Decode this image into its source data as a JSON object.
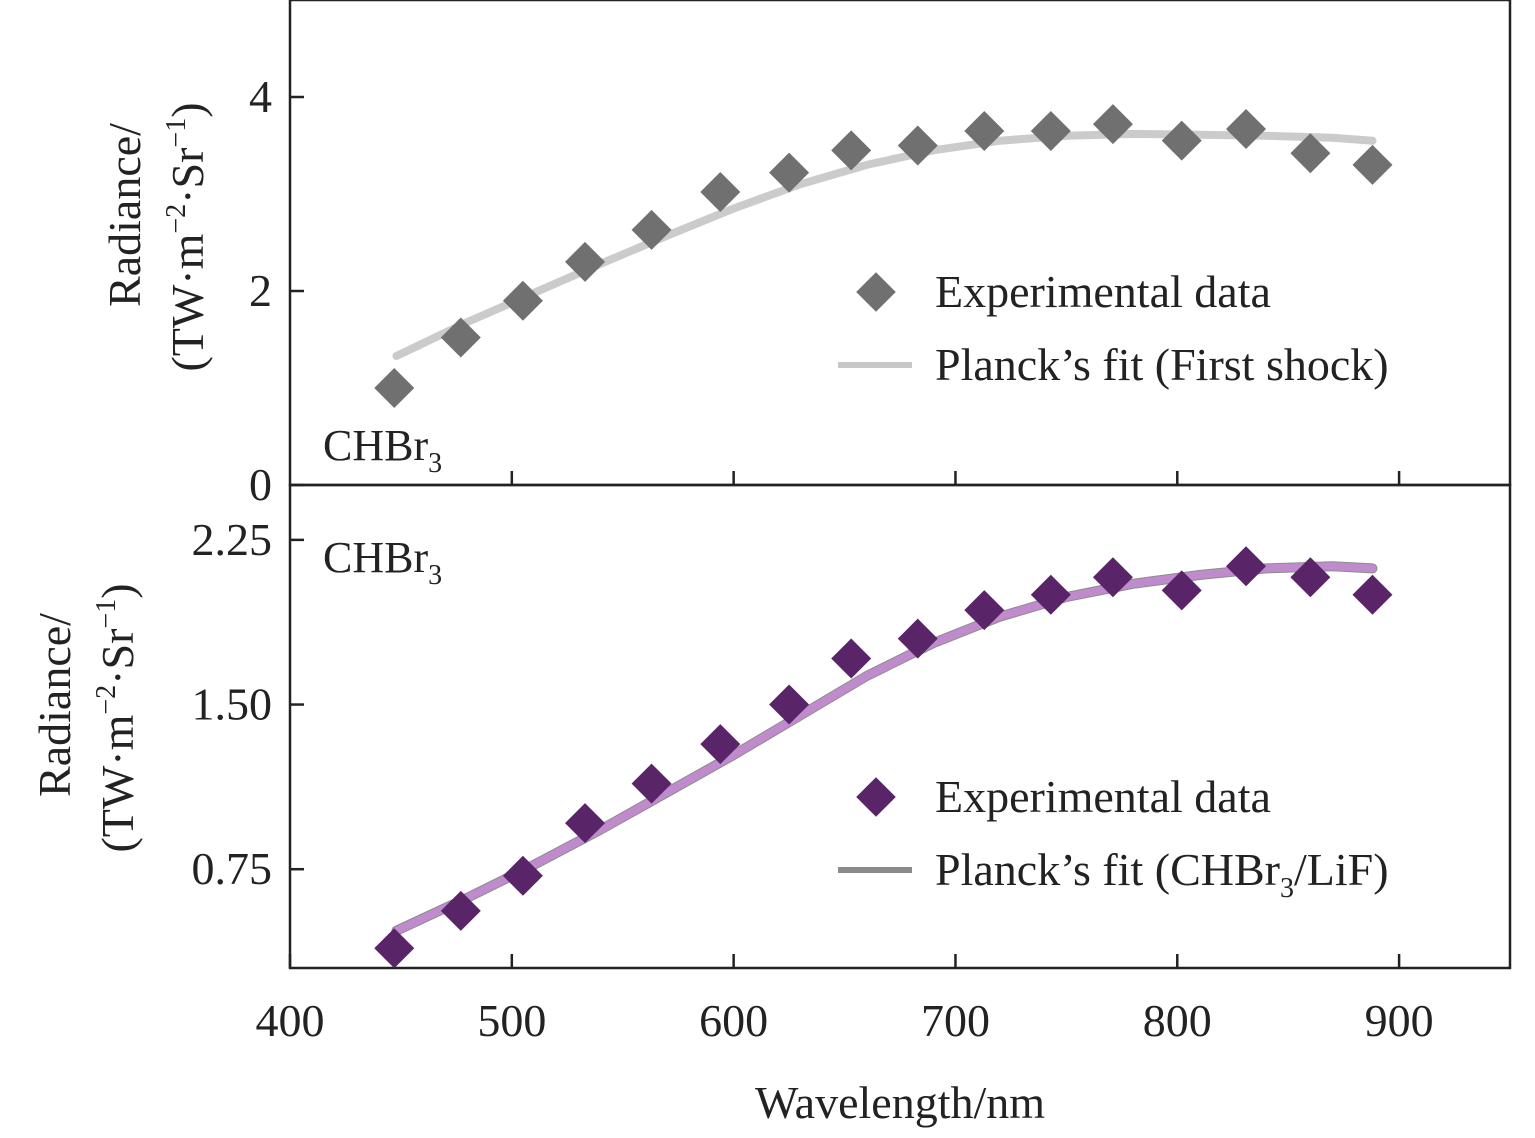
{
  "xlabel": "Wavelength/nm",
  "chart_data": [
    {
      "type": "scatter",
      "panel": "top",
      "sample_label": {
        "main": "CHBr",
        "sub": "3"
      },
      "ylabel": {
        "line1": "Radiance/",
        "line2_parts": [
          "(TW·m",
          "−2",
          "·Sr",
          "−1",
          ")"
        ]
      },
      "xlim": [
        400,
        950
      ],
      "ylim": [
        0,
        5
      ],
      "xticks": [
        500,
        600,
        700,
        800,
        900
      ],
      "yticks": [
        0,
        2,
        4
      ],
      "ytick_labels": [
        "0",
        "2",
        "4"
      ],
      "colors": {
        "marker": "#707070",
        "fit": "#c8c8c8"
      },
      "series": [
        {
          "name": "Experimental data",
          "kind": "markers",
          "x": [
            447,
            477,
            505,
            533,
            563,
            594,
            625,
            653,
            683,
            713,
            743,
            771,
            802,
            831,
            860,
            888
          ],
          "y": [
            1.0,
            1.52,
            1.9,
            2.3,
            2.63,
            3.02,
            3.22,
            3.45,
            3.5,
            3.65,
            3.65,
            3.72,
            3.55,
            3.67,
            3.42,
            3.3
          ]
        },
        {
          "name": "Planck’s fit (First shock)",
          "kind": "line",
          "x": [
            448,
            480,
            510,
            540,
            570,
            600,
            630,
            660,
            690,
            720,
            750,
            780,
            810,
            840,
            870,
            888
          ],
          "y": [
            1.33,
            1.68,
            1.98,
            2.28,
            2.57,
            2.85,
            3.1,
            3.3,
            3.45,
            3.55,
            3.6,
            3.62,
            3.61,
            3.6,
            3.58,
            3.55
          ]
        }
      ],
      "legend": {
        "position": "center-right",
        "line1": "Experimental data",
        "line2": "Planck’s fit (First shock)"
      }
    },
    {
      "type": "scatter",
      "panel": "bottom",
      "sample_label": {
        "main": "CHBr",
        "sub": "3"
      },
      "ylabel": {
        "line1": "Radiance/",
        "line2_parts": [
          "(TW·m",
          "−2",
          "·Sr",
          "−1",
          ")"
        ]
      },
      "xlim": [
        400,
        950
      ],
      "ylim": [
        0.3,
        2.5
      ],
      "xticks": [
        400,
        500,
        600,
        700,
        800,
        900
      ],
      "xtick_labels": [
        "400",
        "500",
        "600",
        "700",
        "800",
        "900"
      ],
      "yticks": [
        0.75,
        1.5,
        2.25
      ],
      "ytick_labels": [
        "0.75",
        "1.50",
        "2.25"
      ],
      "colors": {
        "marker": "#5a2468",
        "fit": "#c38bd1",
        "fit_dark": "#808080"
      },
      "series": [
        {
          "name": "Experimental data",
          "kind": "markers",
          "x": [
            447,
            477,
            505,
            533,
            563,
            594,
            625,
            653,
            683,
            713,
            743,
            771,
            802,
            831,
            860,
            888
          ],
          "y": [
            0.39,
            0.56,
            0.72,
            0.96,
            1.14,
            1.32,
            1.5,
            1.71,
            1.8,
            1.93,
            2.0,
            2.08,
            2.02,
            2.13,
            2.08,
            2.0
          ]
        },
        {
          "name": "Planck’s fit (CHBr3/LiF)",
          "kind": "line",
          "x": [
            448,
            480,
            510,
            540,
            570,
            600,
            630,
            660,
            690,
            720,
            750,
            780,
            810,
            840,
            870,
            888
          ],
          "y": [
            0.47,
            0.62,
            0.77,
            0.93,
            1.1,
            1.27,
            1.45,
            1.63,
            1.78,
            1.9,
            1.99,
            2.05,
            2.09,
            2.12,
            2.13,
            2.12
          ]
        }
      ],
      "legend": {
        "position": "lower-right",
        "line1": "Experimental data",
        "line2_parts": [
          "Planck’s fit (CHBr",
          "3",
          "/LiF)"
        ]
      }
    }
  ]
}
